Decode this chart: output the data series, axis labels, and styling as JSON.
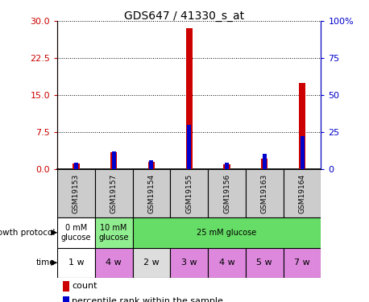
{
  "title": "GDS647 / 41330_s_at",
  "samples": [
    "GSM19153",
    "GSM19157",
    "GSM19154",
    "GSM19155",
    "GSM19156",
    "GSM19163",
    "GSM19164"
  ],
  "count_values": [
    1.2,
    3.5,
    1.5,
    28.5,
    1.0,
    2.2,
    17.5
  ],
  "percentile_values": [
    4.5,
    12.0,
    6.0,
    30.0,
    4.5,
    10.5,
    22.5
  ],
  "left_ylim": [
    0,
    30
  ],
  "right_ylim": [
    0,
    100
  ],
  "left_yticks": [
    0,
    7.5,
    15,
    22.5,
    30
  ],
  "right_yticks": [
    0,
    25,
    50,
    75,
    100
  ],
  "right_yticklabels": [
    "0",
    "25",
    "50",
    "75",
    "100%"
  ],
  "count_color": "#cc0000",
  "percentile_color": "#0000cc",
  "time_labels": [
    "1 w",
    "4 w",
    "2 w",
    "3 w",
    "4 w",
    "5 w",
    "7 w"
  ],
  "growth_protocol_groups": [
    {
      "label": "0 mM\nglucose",
      "start": 0,
      "end": 1,
      "color": "#ffffff"
    },
    {
      "label": "10 mM\nglucose",
      "start": 1,
      "end": 2,
      "color": "#90ee90"
    },
    {
      "label": "25 mM glucose",
      "start": 2,
      "end": 7,
      "color": "#66dd66"
    }
  ],
  "time_colors": [
    "#ffffff",
    "#dd88dd",
    "#dddddd",
    "#dd88dd",
    "#dd88dd",
    "#dd88dd",
    "#dd88dd"
  ],
  "bar_width": 0.18,
  "bg_color": "#ffffff",
  "sample_label_bg": "#cccccc"
}
